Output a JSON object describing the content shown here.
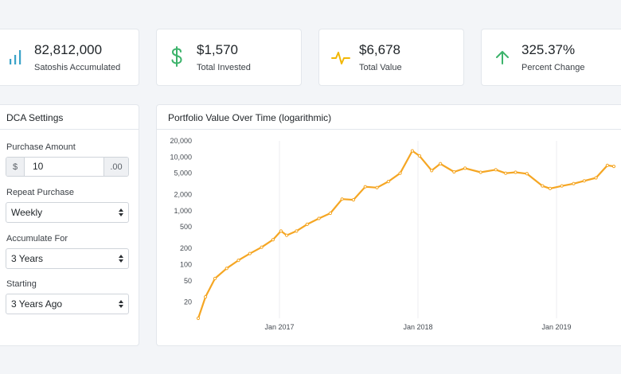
{
  "stats": [
    {
      "icon": "bar-chart-icon",
      "value": "82,812,000",
      "label": "Satoshis Accumulated",
      "color": "#3aa3c8"
    },
    {
      "icon": "dollar-icon",
      "value": "$1,570",
      "label": "Total Invested",
      "color": "#3cb36b"
    },
    {
      "icon": "pulse-icon",
      "value": "$6,678",
      "label": "Total Value",
      "color": "#f2b705"
    },
    {
      "icon": "arrow-up-icon",
      "value": "325.37%",
      "label": "Percent Change",
      "color": "#3cb36b"
    }
  ],
  "settings": {
    "title": "DCA Settings",
    "purchase_amount_label": "Purchase Amount",
    "currency_symbol": "$",
    "amount_value": "10",
    "cents_suffix": ".00",
    "repeat_label": "Repeat Purchase",
    "repeat_value": "Weekly",
    "accumulate_label": "Accumulate For",
    "accumulate_value": "3 Years",
    "starting_label": "Starting",
    "starting_value": "3 Years Ago"
  },
  "chart_panel": {
    "title": "Portfolio Value Over Time (logarithmic)"
  },
  "chart_data": {
    "type": "line",
    "title": "Portfolio Value Over Time (logarithmic)",
    "y_scale": "log",
    "ylim": [
      10,
      20000
    ],
    "y_ticks": [
      20,
      50,
      100,
      200,
      500,
      1000,
      2000,
      5000,
      10000,
      20000
    ],
    "y_tick_labels": [
      "20",
      "50",
      "100",
      "200",
      "500",
      "1,000",
      "2,000",
      "5,000",
      "10,000",
      "20,000"
    ],
    "x_ticks": [
      "Jan 2017",
      "Jan 2018",
      "Jan 2019"
    ],
    "xlim": [
      "2016-06-01",
      "2019-06-01"
    ],
    "grid": true,
    "line_color": "#f5a623",
    "series": [
      {
        "x": [
          "2016-06-01",
          "2016-06-20",
          "2016-07-15",
          "2016-08-15",
          "2016-09-15",
          "2016-10-15",
          "2016-11-15",
          "2016-12-15",
          "2017-01-05",
          "2017-01-20",
          "2017-02-15",
          "2017-03-15",
          "2017-04-15",
          "2017-05-15",
          "2017-06-15",
          "2017-07-15",
          "2017-08-15",
          "2017-09-15",
          "2017-10-15",
          "2017-11-15",
          "2017-12-17",
          "2018-01-05",
          "2018-02-06",
          "2018-03-01",
          "2018-04-06",
          "2018-05-05",
          "2018-06-15",
          "2018-07-25",
          "2018-08-20",
          "2018-09-15",
          "2018-10-15",
          "2018-11-25",
          "2018-12-15",
          "2019-01-15",
          "2019-02-15",
          "2019-03-15",
          "2019-04-15",
          "2019-05-15",
          "2019-06-01"
        ],
        "y": [
          10,
          25,
          55,
          85,
          120,
          160,
          210,
          290,
          420,
          350,
          420,
          560,
          720,
          900,
          1650,
          1600,
          2800,
          2700,
          3500,
          5000,
          13000,
          10500,
          5600,
          7500,
          5300,
          6200,
          5200,
          5800,
          5000,
          5200,
          4900,
          2900,
          2600,
          2900,
          3200,
          3600,
          4100,
          7000,
          6700
        ]
      }
    ]
  }
}
